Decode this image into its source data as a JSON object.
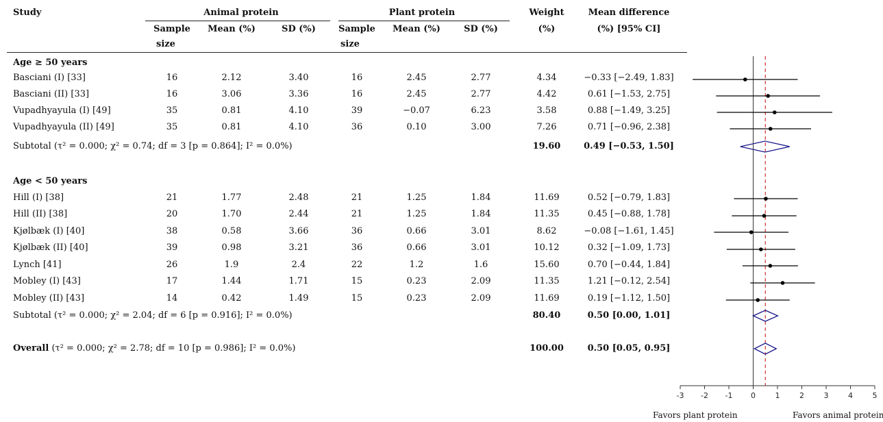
{
  "header": {
    "study": "Study",
    "animal_group": "Animal protein",
    "plant_group": "Plant protein",
    "weight_top": "Weight",
    "weight_bottom": "(%)",
    "md_top": "Mean difference",
    "md_bottom": "(%) [95% CI]",
    "sample_top": "Sample",
    "sample_bottom": "size",
    "mean": "Mean (%)",
    "sd": "SD (%)"
  },
  "groups": [
    {
      "label": "Age ≥ 50 years",
      "studies": [
        {
          "name": "Basciani (I) [33]",
          "a_n": "16",
          "a_mean": "2.12",
          "a_sd": "3.40",
          "p_n": "16",
          "p_mean": "2.45",
          "p_sd": "2.77",
          "weight": "4.34",
          "ci_text": "−0.33 [−2.49, 1.83]"
        },
        {
          "name": "Basciani (II) [33]",
          "a_n": "16",
          "a_mean": "3.06",
          "a_sd": "3.36",
          "p_n": "16",
          "p_mean": "2.45",
          "p_sd": "2.77",
          "weight": "4.42",
          "ci_text": "0.61 [−1.53, 2.75]"
        },
        {
          "name": "Vupadhyayula (I) [49]",
          "a_n": "35",
          "a_mean": "0.81",
          "a_sd": "4.10",
          "p_n": "39",
          "p_mean": "−0.07",
          "p_sd": "6.23",
          "weight": "3.58",
          "ci_text": "0.88 [−1.49, 3.25]"
        },
        {
          "name": "Vupadhyayula (II) [49]",
          "a_n": "35",
          "a_mean": "0.81",
          "a_sd": "4.10",
          "p_n": "36",
          "p_mean": "0.10",
          "p_sd": "3.00",
          "weight": "7.26",
          "ci_text": "0.71 [−0.96, 2.38]"
        }
      ],
      "subtotal": {
        "label": "Subtotal (τ² = 0.000; χ² = 0.74; df = 3 [p = 0.864]; I² = 0.0%)",
        "weight": "19.60",
        "ci_text": "0.49 [−0.53, 1.50]"
      }
    },
    {
      "label": "Age < 50 years",
      "studies": [
        {
          "name": "Hill (I) [38]",
          "a_n": "21",
          "a_mean": "1.77",
          "a_sd": "2.48",
          "p_n": "21",
          "p_mean": "1.25",
          "p_sd": "1.84",
          "weight": "11.69",
          "ci_text": "0.52 [−0.79, 1.83]"
        },
        {
          "name": "Hill (II) [38]",
          "a_n": "20",
          "a_mean": "1.70",
          "a_sd": "2.44",
          "p_n": "21",
          "p_mean": "1.25",
          "p_sd": "1.84",
          "weight": "11.35",
          "ci_text": "0.45 [−0.88, 1.78]"
        },
        {
          "name": "Kjølbæk (I) [40]",
          "a_n": "38",
          "a_mean": "0.58",
          "a_sd": "3.66",
          "p_n": "36",
          "p_mean": "0.66",
          "p_sd": "3.01",
          "weight": "8.62",
          "ci_text": "−0.08 [−1.61, 1.45]"
        },
        {
          "name": "Kjølbæk (II) [40]",
          "a_n": "39",
          "a_mean": "0.98",
          "a_sd": "3.21",
          "p_n": "36",
          "p_mean": "0.66",
          "p_sd": "3.01",
          "weight": "10.12",
          "ci_text": "0.32 [−1.09, 1.73]"
        },
        {
          "name": "Lynch [41]",
          "a_n": "26",
          "a_mean": "1.9",
          "a_sd": "2.4",
          "p_n": "22",
          "p_mean": "1.2",
          "p_sd": "1.6",
          "weight": "15.60",
          "ci_text": "0.70 [−0.44, 1.84]"
        },
        {
          "name": "Mobley (I) [43]",
          "a_n": "17",
          "a_mean": "1.44",
          "a_sd": "1.71",
          "p_n": "15",
          "p_mean": "0.23",
          "p_sd": "2.09",
          "weight": "11.35",
          "ci_text": "1.21 [−0.12, 2.54]"
        },
        {
          "name": "Mobley (II) [43]",
          "a_n": "14",
          "a_mean": "0.42",
          "a_sd": "1.49",
          "p_n": "15",
          "p_mean": "0.23",
          "p_sd": "2.09",
          "weight": "11.69",
          "ci_text": "0.19 [−1.12, 1.50]"
        }
      ],
      "subtotal": {
        "label": "Subtotal (τ² = 0.000; χ² = 2.04; df = 6 [p = 0.916]; I² = 0.0%)",
        "weight": "80.40",
        "ci_text": "0.50 [0.00, 1.01]"
      }
    }
  ],
  "overall": {
    "label_bold": "Overall",
    "label_rest": " (τ² = 0.000; χ² = 2.78; df = 10 [p = 0.986]; I² = 0.0%)",
    "weight": "100.00",
    "ci_text": "0.50 [0.05, 0.95]"
  },
  "favors_left": "Favors plant protein",
  "favors_right": "Favors animal protein",
  "colors": {
    "diamond": "#1a1a8c",
    "reference_line": "#d03030",
    "marks": "#000000"
  },
  "chart_data": {
    "type": "forest",
    "xlim": [
      -3,
      5
    ],
    "xticks": [
      -3,
      -2,
      -1,
      0,
      1,
      2,
      3,
      4,
      5
    ],
    "null_value": 0,
    "pooled_reference": 0.5,
    "studies": [
      {
        "name": "Basciani (I) [33]",
        "est": -0.33,
        "lo": -2.49,
        "hi": 1.83
      },
      {
        "name": "Basciani (II) [33]",
        "est": 0.61,
        "lo": -1.53,
        "hi": 2.75
      },
      {
        "name": "Vupadhyayula (I) [49]",
        "est": 0.88,
        "lo": -1.49,
        "hi": 3.25
      },
      {
        "name": "Vupadhyayula (II) [49]",
        "est": 0.71,
        "lo": -0.96,
        "hi": 2.38
      },
      {
        "name": "Subtotal Age ≥ 50 years",
        "est": 0.49,
        "lo": -0.53,
        "hi": 1.5,
        "summary": true
      },
      {
        "name": "Hill (I) [38]",
        "est": 0.52,
        "lo": -0.79,
        "hi": 1.83
      },
      {
        "name": "Hill (II) [38]",
        "est": 0.45,
        "lo": -0.88,
        "hi": 1.78
      },
      {
        "name": "Kjølbæk (I) [40]",
        "est": -0.08,
        "lo": -1.61,
        "hi": 1.45
      },
      {
        "name": "Kjølbæk (II) [40]",
        "est": 0.32,
        "lo": -1.09,
        "hi": 1.73
      },
      {
        "name": "Lynch [41]",
        "est": 0.7,
        "lo": -0.44,
        "hi": 1.84
      },
      {
        "name": "Mobley (I) [43]",
        "est": 1.21,
        "lo": -0.12,
        "hi": 2.54
      },
      {
        "name": "Mobley (II) [43]",
        "est": 0.19,
        "lo": -1.12,
        "hi": 1.5
      },
      {
        "name": "Subtotal Age < 50 years",
        "est": 0.5,
        "lo": 0.0,
        "hi": 1.01,
        "summary": true
      },
      {
        "name": "Overall",
        "est": 0.5,
        "lo": 0.05,
        "hi": 0.95,
        "summary": true
      }
    ]
  }
}
